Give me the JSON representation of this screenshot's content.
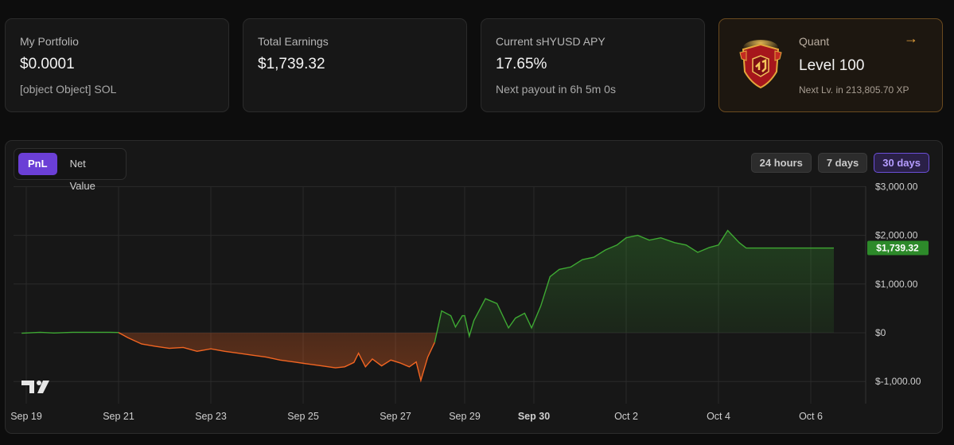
{
  "portfolio": {
    "label": "My Portfolio",
    "value": "$0.0001",
    "sub": "[object Object] SOL"
  },
  "earnings": {
    "label": "Total Earnings",
    "value": "$1,739.32"
  },
  "apy": {
    "label": "Current sHYUSD APY",
    "value": "17.65%",
    "sub": "Next payout in 6h 5m 0s"
  },
  "level": {
    "tier": "Quant",
    "level": "Level 100",
    "next": "Next Lv. in 213,805.70 XP",
    "arrow": "→",
    "emblem_icon": "shield-crest-icon"
  },
  "chart_controls": {
    "modes": [
      "PnL",
      "Net Value"
    ],
    "active_mode": "PnL",
    "ranges": [
      "24 hours",
      "7 days",
      "30 days"
    ],
    "active_range": "30 days"
  },
  "chart_data": {
    "type": "area",
    "y_ticks": [
      "$3,000.00",
      "$2,000.00",
      "$1,000.00",
      "$0",
      "$-1,000.00"
    ],
    "y_tick_values": [
      3000,
      2000,
      1000,
      0,
      -1000
    ],
    "ylim": [
      -1200,
      3050
    ],
    "x_ticks": [
      "Sep 19",
      "Sep 21",
      "Sep 23",
      "Sep 25",
      "Sep 27",
      "Sep 29",
      "Sep 30",
      "Oct 2",
      "Oct 4",
      "Oct 6"
    ],
    "x_tick_days": [
      0,
      2,
      4,
      6,
      8,
      9.5,
      11,
      13,
      15,
      17
    ],
    "bold_tick": "Sep 30",
    "last_value_label": "$1,739.32",
    "last_value": 1739.32,
    "colors": {
      "negative": "#f26522",
      "positive": "#3ea833",
      "label_bg": "#2d8a2a"
    },
    "series": [
      {
        "values": [
          [
            -0.1,
            -10
          ],
          [
            0.3,
            10
          ],
          [
            0.6,
            -5
          ],
          [
            1.0,
            10
          ],
          [
            1.4,
            10
          ],
          [
            1.8,
            10
          ],
          [
            2.0,
            5
          ],
          [
            2.2,
            -100
          ],
          [
            2.5,
            -230
          ],
          [
            2.8,
            -280
          ],
          [
            3.1,
            -320
          ],
          [
            3.4,
            -300
          ],
          [
            3.7,
            -380
          ],
          [
            4.0,
            -330
          ],
          [
            4.3,
            -380
          ],
          [
            4.6,
            -420
          ],
          [
            4.9,
            -460
          ],
          [
            5.2,
            -500
          ],
          [
            5.5,
            -560
          ],
          [
            5.8,
            -600
          ],
          [
            6.1,
            -640
          ],
          [
            6.4,
            -680
          ],
          [
            6.7,
            -720
          ],
          [
            6.9,
            -700
          ],
          [
            7.1,
            -610
          ],
          [
            7.2,
            -420
          ],
          [
            7.35,
            -700
          ],
          [
            7.5,
            -540
          ],
          [
            7.7,
            -680
          ],
          [
            7.9,
            -560
          ],
          [
            8.1,
            -620
          ],
          [
            8.3,
            -700
          ],
          [
            8.45,
            -600
          ],
          [
            8.55,
            -980
          ],
          [
            8.7,
            -500
          ],
          [
            8.85,
            -200
          ],
          [
            9.0,
            450
          ],
          [
            9.2,
            350
          ],
          [
            9.3,
            120
          ],
          [
            9.45,
            350
          ],
          [
            9.5,
            350
          ],
          [
            9.6,
            -70
          ],
          [
            9.7,
            250
          ],
          [
            9.95,
            700
          ],
          [
            10.2,
            600
          ],
          [
            10.45,
            100
          ],
          [
            10.6,
            300
          ],
          [
            10.8,
            400
          ],
          [
            10.95,
            100
          ],
          [
            11.15,
            550
          ],
          [
            11.35,
            1150
          ],
          [
            11.55,
            1300
          ],
          [
            11.8,
            1350
          ],
          [
            12.05,
            1500
          ],
          [
            12.3,
            1550
          ],
          [
            12.55,
            1700
          ],
          [
            12.8,
            1800
          ],
          [
            13.0,
            1950
          ],
          [
            13.25,
            2000
          ],
          [
            13.5,
            1900
          ],
          [
            13.75,
            1950
          ],
          [
            14.05,
            1850
          ],
          [
            14.3,
            1800
          ],
          [
            14.55,
            1650
          ],
          [
            14.8,
            1750
          ],
          [
            15.0,
            1800
          ],
          [
            15.2,
            2100
          ],
          [
            15.45,
            1850
          ],
          [
            15.6,
            1740
          ],
          [
            16.3,
            1739
          ],
          [
            17.5,
            1739.32
          ]
        ]
      }
    ]
  }
}
